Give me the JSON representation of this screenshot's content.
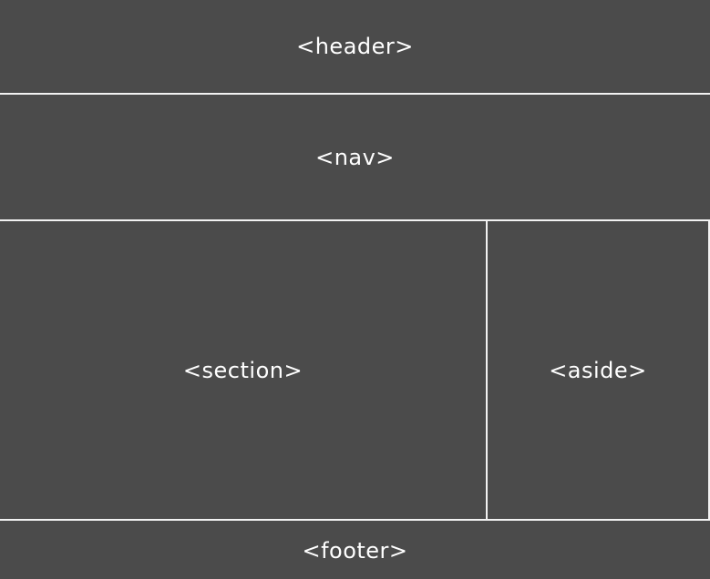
{
  "diagram": {
    "header": "<header>",
    "nav": "<nav>",
    "section": "<section>",
    "aside": "<aside>",
    "footer": "<footer>"
  },
  "colors": {
    "background": "#4b4b4b",
    "border": "#f2f2f2",
    "text": "#ffffff"
  }
}
